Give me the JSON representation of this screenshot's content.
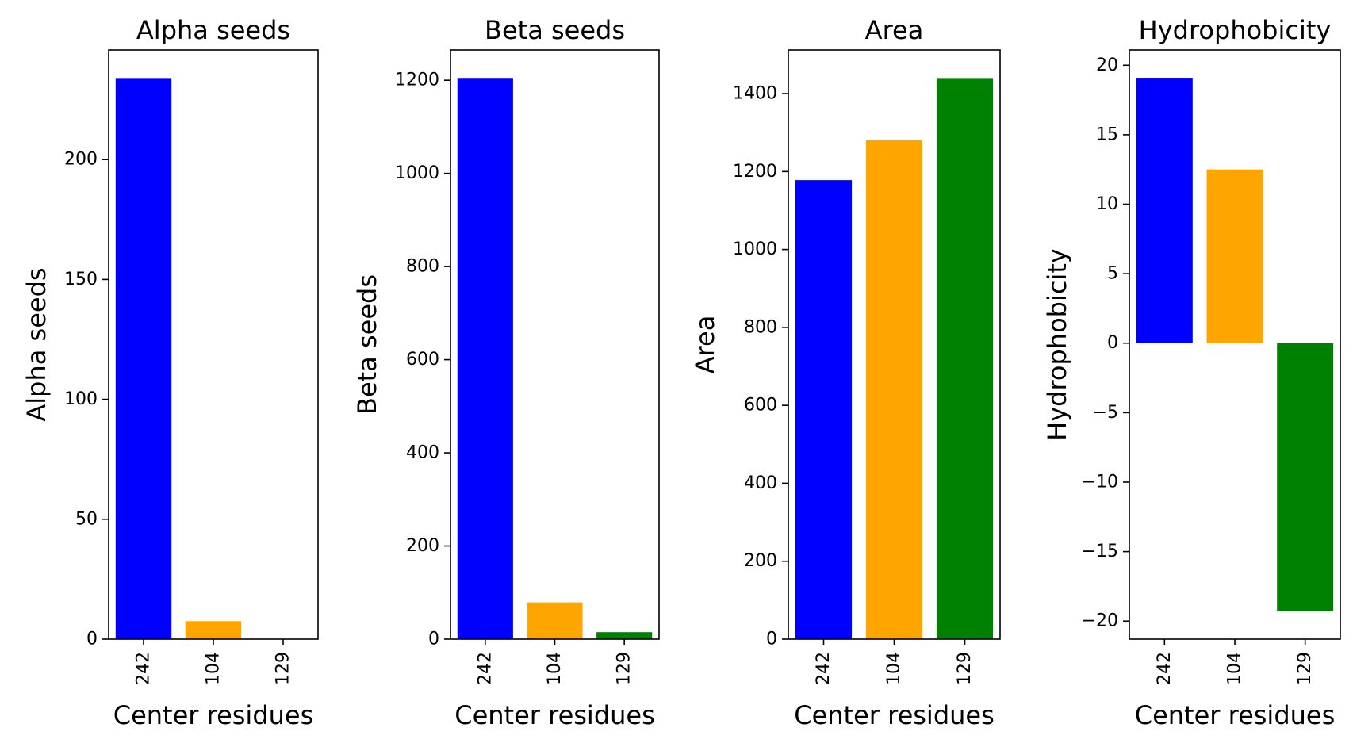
{
  "chart_data": [
    {
      "type": "bar",
      "title": "Alpha seeds",
      "xlabel": "Center residues",
      "ylabel": "Alpha seeds",
      "categories": [
        "242",
        "104",
        "129"
      ],
      "values": [
        234,
        7.5,
        0
      ],
      "colors": [
        "#0000ff",
        "#ffa500",
        "#008000"
      ],
      "ylim": [
        0,
        245.7
      ],
      "yticks": [
        0,
        50,
        100,
        150,
        200
      ],
      "ytick_labels": [
        "0",
        "50",
        "100",
        "150",
        "200"
      ],
      "grid": false
    },
    {
      "type": "bar",
      "title": "Beta seeds",
      "xlabel": "Center residues",
      "ylabel": "Beta seeds",
      "categories": [
        "242",
        "104",
        "129"
      ],
      "values": [
        1205,
        79,
        15
      ],
      "colors": [
        "#0000ff",
        "#ffa500",
        "#008000"
      ],
      "ylim": [
        0,
        1265
      ],
      "yticks": [
        0,
        200,
        400,
        600,
        800,
        1000,
        1200
      ],
      "ytick_labels": [
        "0",
        "200",
        "400",
        "600",
        "800",
        "1000",
        "1200"
      ],
      "grid": false
    },
    {
      "type": "bar",
      "title": "Area",
      "xlabel": "Center residues",
      "ylabel": "Area",
      "categories": [
        "242",
        "104",
        "129"
      ],
      "values": [
        1178,
        1280,
        1440
      ],
      "colors": [
        "#0000ff",
        "#ffa500",
        "#008000"
      ],
      "ylim": [
        0,
        1512
      ],
      "yticks": [
        0,
        200,
        400,
        600,
        800,
        1000,
        1200,
        1400
      ],
      "ytick_labels": [
        "0",
        "200",
        "400",
        "600",
        "800",
        "1000",
        "1200",
        "1400"
      ],
      "grid": false
    },
    {
      "type": "bar",
      "title": "Hydrophobicity",
      "xlabel": "Center residues",
      "ylabel": "Hydrophobicity",
      "categories": [
        "242",
        "104",
        "129"
      ],
      "values": [
        19.1,
        12.5,
        -19.3
      ],
      "colors": [
        "#0000ff",
        "#ffa500",
        "#008000"
      ],
      "ylim": [
        -21.3,
        21.1
      ],
      "yticks": [
        -20,
        -15,
        -10,
        -5,
        0,
        5,
        10,
        15,
        20
      ],
      "ytick_labels": [
        "−20",
        "−15",
        "−10",
        "−5",
        "0",
        "5",
        "10",
        "15",
        "20"
      ],
      "grid": false
    }
  ]
}
